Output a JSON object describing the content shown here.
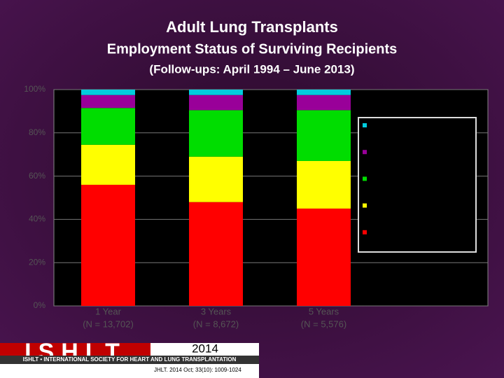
{
  "chart_data": {
    "type": "stacked-bar",
    "title": "Adult Lung Transplants",
    "subtitle": "Employment Status of Surviving Recipients",
    "note": "(Follow-ups: April 1994 – June 2013)",
    "categories": [
      "1 Year",
      "3 Years",
      "5 Years"
    ],
    "category_notes": [
      "(N = 13,702)",
      "(N = 8,672)",
      "(N = 5,576)"
    ],
    "series": [
      {
        "color": "#ff0000",
        "values": [
          56,
          48,
          45
        ]
      },
      {
        "color": "#ffff00",
        "values": [
          18.5,
          21,
          22
        ]
      },
      {
        "color": "#00dd00",
        "values": [
          17,
          21.5,
          23.5
        ]
      },
      {
        "color": "#990099",
        "values": [
          6,
          7,
          7
        ]
      },
      {
        "color": "#00ccdd",
        "values": [
          2.5,
          2.5,
          2.5
        ]
      }
    ],
    "ylim": [
      0,
      100
    ],
    "yticks": [
      {
        "value": 0,
        "label": "0%"
      },
      {
        "value": 20,
        "label": "20%"
      },
      {
        "value": 40,
        "label": "40%"
      },
      {
        "value": 60,
        "label": "60%"
      },
      {
        "value": 80,
        "label": "80%"
      },
      {
        "value": 100,
        "label": "100%"
      }
    ],
    "grid": true
  },
  "footer": {
    "logo": "ISHLT",
    "society": "ISHLT • INTERNATIONAL SOCIETY FOR HEART AND LUNG TRANSPLANTATION",
    "year": "2014",
    "citation": "JHLT. 2014 Oct; 33(10): 1009-1024"
  }
}
